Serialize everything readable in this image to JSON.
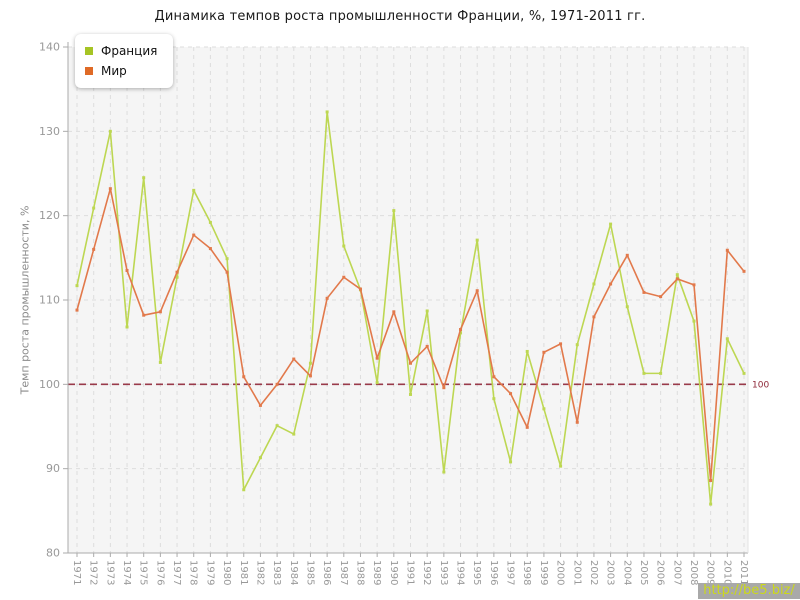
{
  "title": "Динамика темпов роста промышленности Франции, %, 1971-2011 гг.",
  "watermark": {
    "text": "http://be5.biz/"
  },
  "legend": {
    "items": [
      {
        "label": "Франция",
        "marker_color": "#a6c424"
      },
      {
        "label": "Мир",
        "marker_color": "#df6a26"
      }
    ]
  },
  "reference_line": {
    "value": 100,
    "label": "100",
    "color": "#993a4a",
    "label_color": "#8e2838"
  },
  "axes": {
    "y_title": "Темп роста промышленности, %",
    "y_ticks": [
      80,
      90,
      100,
      110,
      120,
      130,
      140
    ],
    "x_ticks": [
      "1971",
      "1972",
      "1973",
      "1974",
      "1975",
      "1976",
      "1977",
      "1978",
      "1979",
      "1980",
      "1981",
      "1982",
      "1983",
      "1984",
      "1985",
      "1986",
      "1987",
      "1988",
      "1989",
      "1990",
      "1991",
      "1992",
      "1993",
      "1994",
      "1995",
      "1996",
      "1997",
      "1998",
      "1999",
      "2000",
      "2001",
      "2002",
      "2003",
      "2004",
      "2005",
      "2006",
      "2007",
      "2008",
      "2009",
      "2010",
      "2011"
    ]
  },
  "chart_data": {
    "type": "line",
    "title": "Динамика темпов роста промышленности Франции, %, 1971-2011 гг.",
    "xlabel": "",
    "ylabel": "Темп роста промышленности, %",
    "ylim": [
      80,
      140
    ],
    "ytick_step": 10,
    "grid": true,
    "legend_position": "top-left",
    "categories": [
      1971,
      1972,
      1973,
      1974,
      1975,
      1976,
      1977,
      1978,
      1979,
      1980,
      1981,
      1982,
      1983,
      1984,
      1985,
      1986,
      1987,
      1988,
      1989,
      1990,
      1991,
      1992,
      1993,
      1994,
      1995,
      1996,
      1997,
      1998,
      1999,
      2000,
      2001,
      2002,
      2003,
      2004,
      2005,
      2006,
      2007,
      2008,
      2009,
      2010,
      2011
    ],
    "series": [
      {
        "name": "Франция",
        "color": "#bdd752",
        "values": [
          111.7,
          120.9,
          130.0,
          106.8,
          124.5,
          102.6,
          112.7,
          123.0,
          119.2,
          114.9,
          87.5,
          91.3,
          95.1,
          94.1,
          102.5,
          132.3,
          116.4,
          111.2,
          100.2,
          120.6,
          98.8,
          108.7,
          89.6,
          106.1,
          117.1,
          98.3,
          90.8,
          103.9,
          97.1,
          90.3,
          104.7,
          111.9,
          119.0,
          109.2,
          101.3,
          101.3,
          113.0,
          107.5,
          85.8,
          105.4,
          101.3
        ]
      },
      {
        "name": "Мир",
        "color": "#e2794b",
        "values": [
          108.8,
          116.0,
          123.2,
          113.5,
          108.2,
          108.6,
          113.3,
          117.7,
          116.1,
          113.3,
          100.9,
          97.5,
          100.0,
          103.0,
          101.0,
          110.2,
          112.7,
          111.3,
          103.1,
          108.6,
          102.5,
          104.5,
          99.6,
          106.5,
          111.1,
          100.9,
          98.9,
          94.9,
          103.8,
          104.8,
          95.5,
          108.0,
          111.9,
          115.3,
          110.9,
          110.4,
          112.5,
          111.8,
          88.6,
          115.9,
          113.4
        ]
      }
    ]
  },
  "style": {
    "plot_bg": "#f5f5f5",
    "grid_color": "#dddddd",
    "axis_color": "#ababab",
    "tick_label_color": "#999999"
  }
}
